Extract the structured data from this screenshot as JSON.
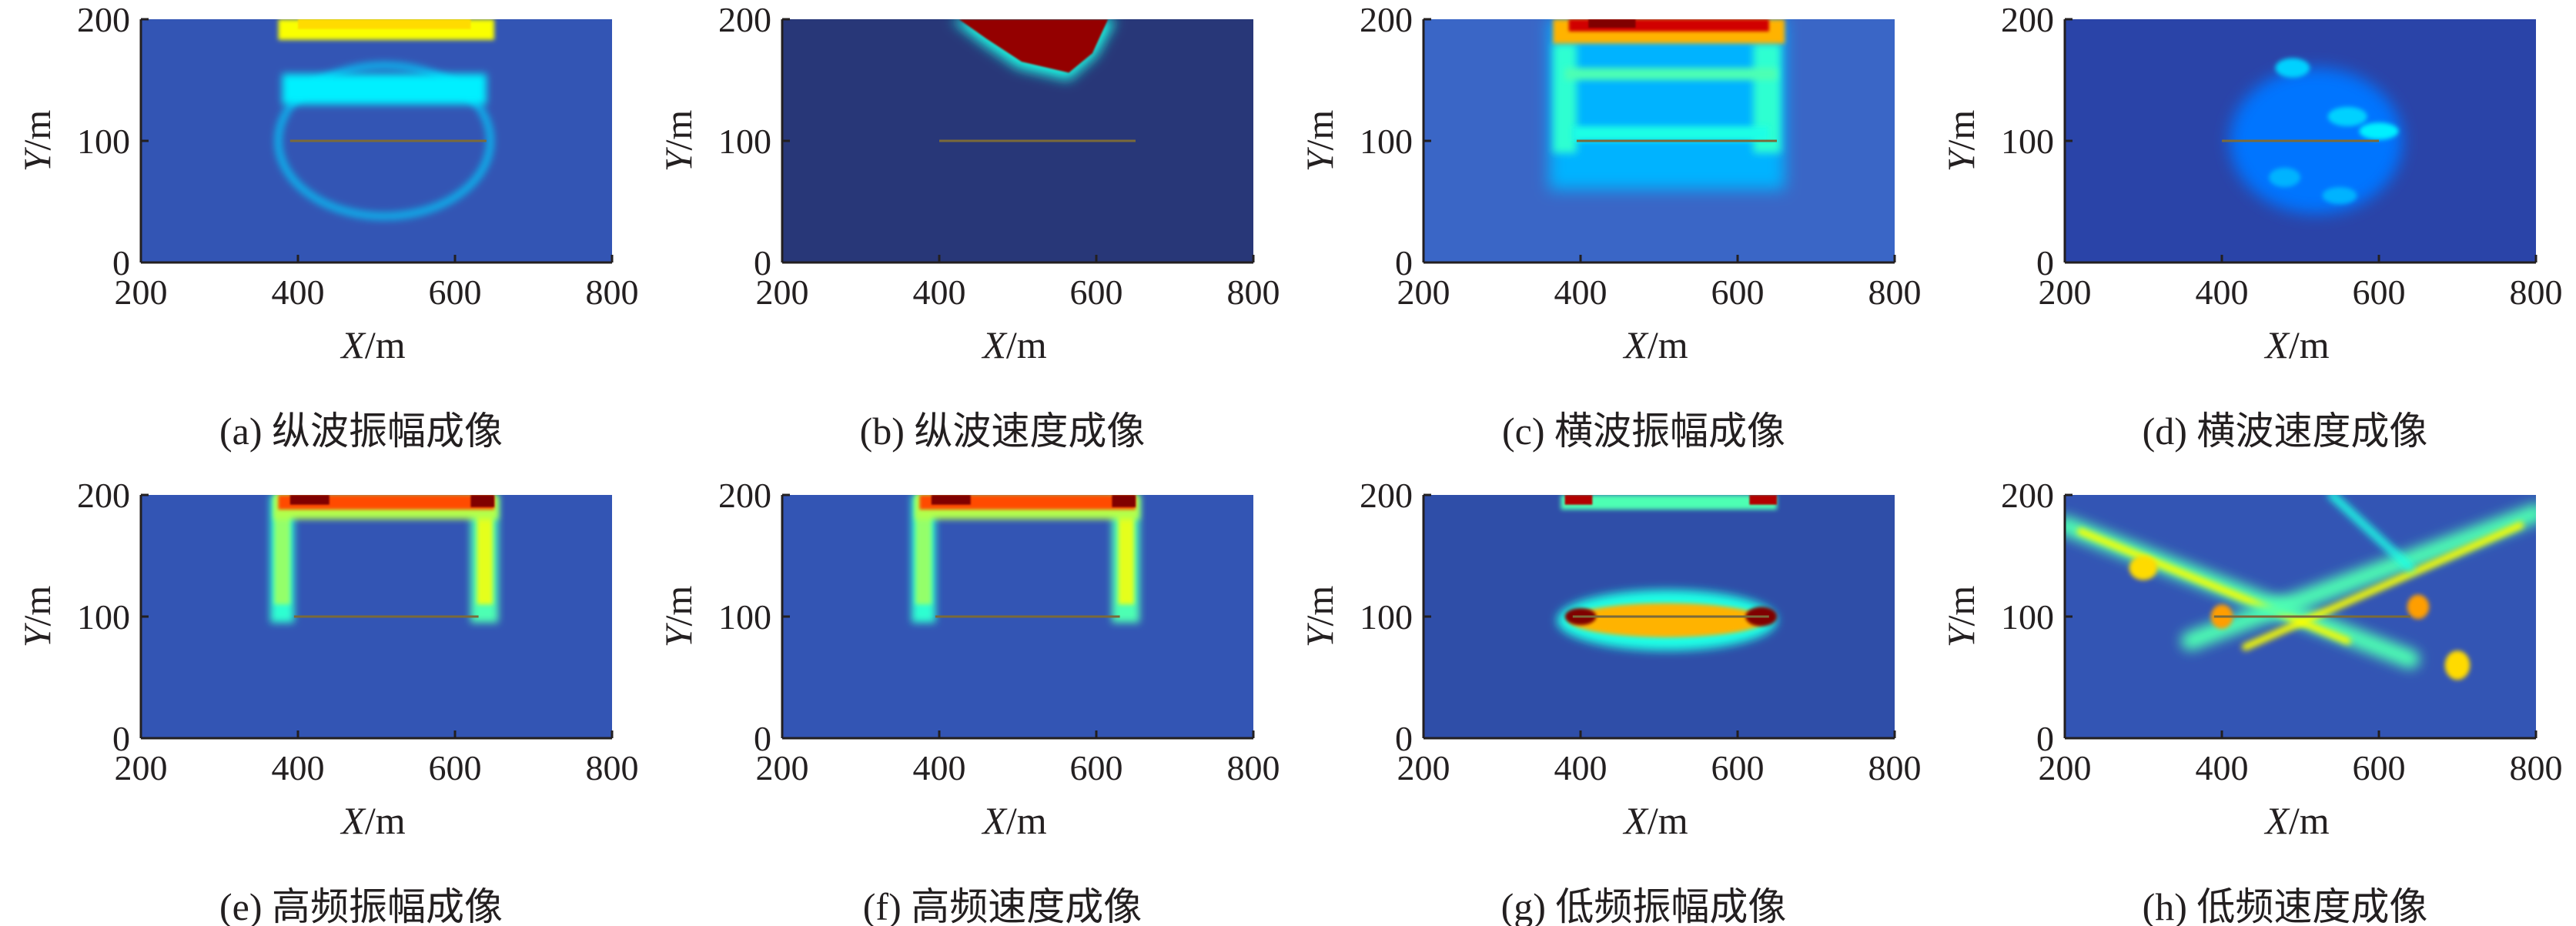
{
  "colors": {
    "colormap": "jet",
    "background": "#3355b4",
    "text": "#231f20",
    "line": "#7a6a3a"
  },
  "chart_data": [
    {
      "id": "a",
      "type": "heatmap",
      "caption": "(a) 纵波振幅成像",
      "xlabel_var": "X",
      "xlabel_unit": "/m",
      "ylabel_var": "Y",
      "ylabel_unit": "/m",
      "xlim": [
        200,
        800
      ],
      "ylim": [
        0,
        200
      ],
      "xticks": [
        "200",
        "400",
        "600",
        "800"
      ],
      "yticks": [
        "0",
        "100",
        "200"
      ],
      "background": "#3355b4",
      "line": {
        "x": [
          390,
          640
        ],
        "y": 100
      },
      "features": [
        {
          "shape": "ellipse",
          "cx": 510,
          "cy": 100,
          "rx": 135,
          "ry": 62,
          "value": 0.33,
          "mode": "ring",
          "w": 7,
          "blur": 5
        },
        {
          "shape": "rect",
          "x0": 380,
          "x1": 640,
          "y0": 130,
          "y1": 155,
          "value": 0.36,
          "blur": 5
        },
        {
          "shape": "rect",
          "x0": 375,
          "x1": 650,
          "y0": 183,
          "y1": 200,
          "value": 0.62,
          "blur": 3
        },
        {
          "shape": "rect",
          "x0": 400,
          "x1": 620,
          "y0": 192,
          "y1": 200,
          "value": 0.66,
          "blur": 1
        }
      ]
    },
    {
      "id": "b",
      "type": "heatmap",
      "caption": "(b) 纵波速度成像",
      "xlabel_var": "X",
      "xlabel_unit": "/m",
      "ylabel_var": "Y",
      "ylabel_unit": "/m",
      "xlim": [
        200,
        800
      ],
      "ylim": [
        0,
        200
      ],
      "xticks": [
        "200",
        "400",
        "600",
        "800"
      ],
      "yticks": [
        "0",
        "100",
        "200"
      ],
      "background": "#283778",
      "line": {
        "x": [
          400,
          650
        ],
        "y": 100
      },
      "features": [
        {
          "shape": "poly",
          "points": [
            [
              415,
              200
            ],
            [
              625,
              200
            ],
            [
              600,
              170
            ],
            [
              565,
              150
            ],
            [
              500,
              160
            ],
            [
              455,
              180
            ]
          ],
          "value": 0.4,
          "blur": 8
        },
        {
          "shape": "poly",
          "points": [
            [
              425,
              200
            ],
            [
              615,
              200
            ],
            [
              595,
              172
            ],
            [
              565,
              156
            ],
            [
              505,
              165
            ],
            [
              460,
              184
            ]
          ],
          "value": 0.98,
          "blur": 1
        }
      ]
    },
    {
      "id": "c",
      "type": "heatmap",
      "caption": "(c) 横波振幅成像",
      "xlabel_var": "X",
      "xlabel_unit": "/m",
      "ylabel_var": "Y",
      "ylabel_unit": "/m",
      "xlim": [
        200,
        800
      ],
      "ylim": [
        0,
        200
      ],
      "xticks": [
        "200",
        "400",
        "600",
        "800"
      ],
      "yticks": [
        "0",
        "100",
        "200"
      ],
      "background": "#3a66c6",
      "line": {
        "x": [
          395,
          650
        ],
        "y": 100
      },
      "features": [
        {
          "shape": "rect",
          "x0": 360,
          "x1": 660,
          "y0": 60,
          "y1": 200,
          "value": 0.3,
          "blur": 10
        },
        {
          "shape": "rect",
          "x0": 365,
          "x1": 395,
          "y0": 90,
          "y1": 180,
          "value": 0.42,
          "blur": 5
        },
        {
          "shape": "rect",
          "x0": 620,
          "x1": 655,
          "y0": 90,
          "y1": 180,
          "value": 0.42,
          "blur": 5
        },
        {
          "shape": "rect",
          "x0": 380,
          "x1": 650,
          "y0": 150,
          "y1": 160,
          "value": 0.45,
          "blur": 4
        },
        {
          "shape": "rect",
          "x0": 390,
          "x1": 640,
          "y0": 100,
          "y1": 112,
          "value": 0.4,
          "blur": 4
        },
        {
          "shape": "rect",
          "x0": 365,
          "x1": 660,
          "y0": 180,
          "y1": 200,
          "value": 0.7,
          "blur": 3
        },
        {
          "shape": "rect",
          "x0": 385,
          "x1": 640,
          "y0": 190,
          "y1": 200,
          "value": 0.92,
          "blur": 2
        },
        {
          "shape": "rect",
          "x0": 410,
          "x1": 470,
          "y0": 193,
          "y1": 200,
          "value": 1.0,
          "blur": 1
        }
      ]
    },
    {
      "id": "d",
      "type": "heatmap",
      "caption": "(d) 横波速度成像",
      "xlabel_var": "X",
      "xlabel_unit": "/m",
      "ylabel_var": "Y",
      "ylabel_unit": "/m",
      "xlim": [
        200,
        800
      ],
      "ylim": [
        0,
        200
      ],
      "xticks": [
        "200",
        "400",
        "600",
        "800"
      ],
      "yticks": [
        "0",
        "100",
        "200"
      ],
      "background": "#2a44a8",
      "line": {
        "x": [
          400,
          600
        ],
        "y": 100
      },
      "features": [
        {
          "shape": "ellipse",
          "cx": 520,
          "cy": 100,
          "rx": 110,
          "ry": 60,
          "value": 0.24,
          "blur": 10
        },
        {
          "shape": "ellipse",
          "cx": 490,
          "cy": 160,
          "rx": 22,
          "ry": 8,
          "value": 0.33,
          "blur": 3
        },
        {
          "shape": "ellipse",
          "cx": 560,
          "cy": 120,
          "rx": 25,
          "ry": 8,
          "value": 0.33,
          "blur": 3
        },
        {
          "shape": "ellipse",
          "cx": 600,
          "cy": 108,
          "rx": 25,
          "ry": 7,
          "value": 0.36,
          "blur": 3
        },
        {
          "shape": "ellipse",
          "cx": 480,
          "cy": 70,
          "rx": 20,
          "ry": 8,
          "value": 0.3,
          "blur": 3
        },
        {
          "shape": "ellipse",
          "cx": 550,
          "cy": 55,
          "rx": 22,
          "ry": 7,
          "value": 0.3,
          "blur": 3
        }
      ]
    },
    {
      "id": "e",
      "type": "heatmap",
      "caption": "(e) 高频振幅成像",
      "xlabel_var": "X",
      "xlabel_unit": "/m",
      "ylabel_var": "Y",
      "ylabel_unit": "/m",
      "xlim": [
        200,
        800
      ],
      "ylim": [
        0,
        200
      ],
      "xticks": [
        "200",
        "400",
        "600",
        "800"
      ],
      "yticks": [
        "0",
        "100",
        "200"
      ],
      "background": "#3355b4",
      "line": {
        "x": [
          395,
          630
        ],
        "y": 100
      },
      "features": [
        {
          "shape": "rect",
          "x0": 365,
          "x1": 395,
          "y0": 95,
          "y1": 200,
          "value": 0.42,
          "blur": 5
        },
        {
          "shape": "rect",
          "x0": 370,
          "x1": 390,
          "y0": 110,
          "y1": 200,
          "value": 0.52,
          "blur": 3
        },
        {
          "shape": "rect",
          "x0": 620,
          "x1": 655,
          "y0": 95,
          "y1": 200,
          "value": 0.45,
          "blur": 5
        },
        {
          "shape": "rect",
          "x0": 628,
          "x1": 648,
          "y0": 110,
          "y1": 190,
          "value": 0.6,
          "blur": 3
        },
        {
          "shape": "rect",
          "x0": 370,
          "x1": 655,
          "y0": 180,
          "y1": 200,
          "value": 0.55,
          "blur": 4
        },
        {
          "shape": "rect",
          "x0": 375,
          "x1": 650,
          "y0": 188,
          "y1": 200,
          "value": 0.8,
          "blur": 2
        },
        {
          "shape": "rect",
          "x0": 390,
          "x1": 440,
          "y0": 192,
          "y1": 200,
          "value": 1.0,
          "blur": 1
        },
        {
          "shape": "rect",
          "x0": 620,
          "x1": 650,
          "y0": 190,
          "y1": 200,
          "value": 1.0,
          "blur": 1
        }
      ]
    },
    {
      "id": "f",
      "type": "heatmap",
      "caption": "(f) 高频速度成像",
      "xlabel_var": "X",
      "xlabel_unit": "/m",
      "ylabel_var": "Y",
      "ylabel_unit": "/m",
      "xlim": [
        200,
        800
      ],
      "ylim": [
        0,
        200
      ],
      "xticks": [
        "200",
        "400",
        "600",
        "800"
      ],
      "yticks": [
        "0",
        "100",
        "200"
      ],
      "background": "#3355b4",
      "line": {
        "x": [
          395,
          630
        ],
        "y": 100
      },
      "features": [
        {
          "shape": "rect",
          "x0": 365,
          "x1": 395,
          "y0": 95,
          "y1": 200,
          "value": 0.42,
          "blur": 5
        },
        {
          "shape": "rect",
          "x0": 370,
          "x1": 390,
          "y0": 110,
          "y1": 200,
          "value": 0.52,
          "blur": 3
        },
        {
          "shape": "rect",
          "x0": 620,
          "x1": 655,
          "y0": 95,
          "y1": 200,
          "value": 0.45,
          "blur": 5
        },
        {
          "shape": "rect",
          "x0": 628,
          "x1": 648,
          "y0": 110,
          "y1": 190,
          "value": 0.6,
          "blur": 3
        },
        {
          "shape": "rect",
          "x0": 370,
          "x1": 655,
          "y0": 180,
          "y1": 200,
          "value": 0.55,
          "blur": 4
        },
        {
          "shape": "rect",
          "x0": 375,
          "x1": 650,
          "y0": 188,
          "y1": 200,
          "value": 0.8,
          "blur": 2
        },
        {
          "shape": "rect",
          "x0": 390,
          "x1": 440,
          "y0": 192,
          "y1": 200,
          "value": 1.0,
          "blur": 1
        },
        {
          "shape": "rect",
          "x0": 620,
          "x1": 650,
          "y0": 190,
          "y1": 200,
          "value": 1.0,
          "blur": 1
        }
      ]
    },
    {
      "id": "g",
      "type": "heatmap",
      "caption": "(g) 低频振幅成像",
      "xlabel_var": "X",
      "xlabel_unit": "/m",
      "ylabel_var": "Y",
      "ylabel_unit": "/m",
      "xlim": [
        200,
        800
      ],
      "ylim": [
        0,
        200
      ],
      "xticks": [
        "200",
        "400",
        "600",
        "800"
      ],
      "yticks": [
        "0",
        "100",
        "200"
      ],
      "background": "#2f4ea8",
      "line": {
        "x": [
          390,
          640
        ],
        "y": 100
      },
      "features": [
        {
          "shape": "ellipse",
          "cx": 510,
          "cy": 97,
          "rx": 140,
          "ry": 25,
          "value": 0.4,
          "blur": 6
        },
        {
          "shape": "ellipse",
          "cx": 510,
          "cy": 97,
          "rx": 125,
          "ry": 14,
          "value": 0.7,
          "blur": 3
        },
        {
          "shape": "ellipse",
          "cx": 400,
          "cy": 100,
          "rx": 20,
          "ry": 7,
          "value": 1.0,
          "blur": 2
        },
        {
          "shape": "ellipse",
          "cx": 630,
          "cy": 100,
          "rx": 20,
          "ry": 8,
          "value": 1.0,
          "blur": 2
        },
        {
          "shape": "rect",
          "x0": 375,
          "x1": 650,
          "y0": 188,
          "y1": 200,
          "value": 0.45,
          "blur": 3
        },
        {
          "shape": "rect",
          "x0": 380,
          "x1": 415,
          "y0": 192,
          "y1": 200,
          "value": 0.95,
          "blur": 1
        },
        {
          "shape": "rect",
          "x0": 615,
          "x1": 650,
          "y0": 192,
          "y1": 200,
          "value": 0.95,
          "blur": 1
        }
      ]
    },
    {
      "id": "h",
      "type": "heatmap",
      "caption": "(h) 低频速度成像",
      "xlabel_var": "X",
      "xlabel_unit": "/m",
      "ylabel_var": "Y",
      "ylabel_unit": "/m",
      "xlim": [
        200,
        800
      ],
      "ylim": [
        0,
        200
      ],
      "xticks": [
        "200",
        "400",
        "600",
        "800"
      ],
      "yticks": [
        "0",
        "100",
        "200"
      ],
      "background": "#3355b4",
      "line": {
        "x": [
          390,
          640
        ],
        "y": 100
      },
      "features": [
        {
          "shape": "band",
          "x0": 200,
          "y0": 175,
          "x1": 640,
          "y1": 65,
          "value": 0.45,
          "w": 24,
          "blur": 8
        },
        {
          "shape": "band",
          "x0": 220,
          "y0": 170,
          "x1": 560,
          "y1": 80,
          "value": 0.62,
          "w": 9,
          "blur": 4
        },
        {
          "shape": "band",
          "x0": 800,
          "y0": 185,
          "x1": 360,
          "y1": 80,
          "value": 0.45,
          "w": 24,
          "blur": 8
        },
        {
          "shape": "band",
          "x0": 780,
          "y0": 175,
          "x1": 430,
          "y1": 75,
          "value": 0.62,
          "w": 9,
          "blur": 4
        },
        {
          "shape": "band",
          "x0": 540,
          "y0": 200,
          "x1": 640,
          "y1": 140,
          "value": 0.4,
          "w": 10,
          "blur": 5
        },
        {
          "shape": "ellipse",
          "cx": 400,
          "cy": 100,
          "rx": 14,
          "ry": 10,
          "value": 0.72,
          "blur": 3
        },
        {
          "shape": "ellipse",
          "cx": 650,
          "cy": 108,
          "rx": 14,
          "ry": 10,
          "value": 0.72,
          "blur": 3
        },
        {
          "shape": "ellipse",
          "cx": 700,
          "cy": 60,
          "rx": 16,
          "ry": 12,
          "value": 0.66,
          "blur": 3
        },
        {
          "shape": "ellipse",
          "cx": 300,
          "cy": 140,
          "rx": 18,
          "ry": 10,
          "value": 0.66,
          "blur": 3
        }
      ]
    }
  ]
}
